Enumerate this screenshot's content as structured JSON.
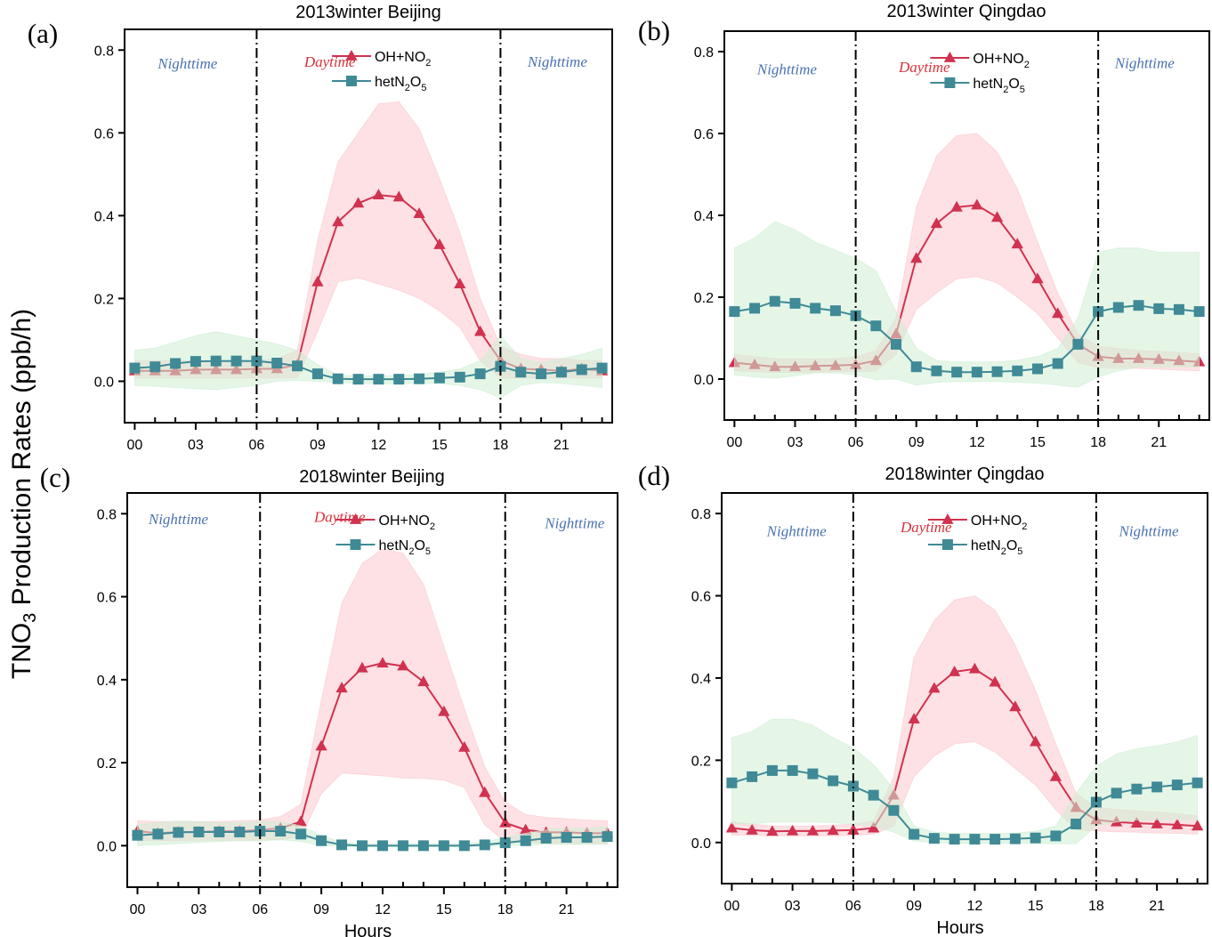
{
  "figure": {
    "ylabel_main": "TNO",
    "ylabel_sub": "3",
    "ylabel_rest": " Production Rates (ppb/h)",
    "xlabel": "Hours"
  },
  "colors": {
    "oh_line": "#d0324f",
    "oh_band": "#fbc9cd",
    "het_line": "#3f8a96",
    "het_band": "#cfeed4",
    "night_text": "#4a72b0",
    "day_text": "#d9323a"
  },
  "chart_data": [
    {
      "type": "line",
      "panel": "(a)",
      "title": "2013winter Beijing",
      "xlabel": "",
      "ylabel": "TNO3 Production Rates (ppb/h)",
      "ylim": [
        -0.1,
        0.85
      ],
      "xlim": [
        -0.5,
        23.5
      ],
      "yticks": [
        "0.0",
        "0.2",
        "0.4",
        "0.6",
        "0.8"
      ],
      "ytick_values": [
        0,
        0.2,
        0.4,
        0.6,
        0.8
      ],
      "xticks": [
        "00",
        "03",
        "06",
        "09",
        "12",
        "15",
        "18",
        "21"
      ],
      "xtick_values": [
        0,
        3,
        6,
        9,
        12,
        15,
        18,
        21
      ],
      "vlines": [
        6,
        18
      ],
      "period_labels": [
        {
          "text": "Nighttime",
          "kind": "night",
          "x": 2.6,
          "y": 0.755
        },
        {
          "text": "Daytime",
          "kind": "day",
          "x": 9.6,
          "y": 0.76
        },
        {
          "text": "Nighttime",
          "kind": "night",
          "x": 20.8,
          "y": 0.76
        }
      ],
      "legend": {
        "position": "top-center",
        "entries": [
          {
            "label": "OH+NO",
            "sub": "2",
            "after": "",
            "series": "OH+NO2"
          },
          {
            "label": "hetN",
            "sub": "2",
            "after": "O",
            "sub2": "5",
            "series": "hetN2O5"
          }
        ]
      },
      "x": [
        0,
        1,
        2,
        3,
        4,
        5,
        6,
        7,
        8,
        9,
        10,
        11,
        12,
        13,
        14,
        15,
        16,
        17,
        18,
        19,
        20,
        21,
        22,
        23
      ],
      "series": [
        {
          "name": "OH+NO2",
          "marker": "triangle",
          "values": [
            0.025,
            0.025,
            0.025,
            0.028,
            0.028,
            0.028,
            0.03,
            0.03,
            0.04,
            0.24,
            0.385,
            0.43,
            0.45,
            0.445,
            0.405,
            0.33,
            0.235,
            0.12,
            0.05,
            0.03,
            0.028,
            0.025,
            0.03,
            0.025
          ],
          "lower": [
            0.008,
            0.008,
            0.008,
            0.008,
            0.008,
            0.008,
            0.008,
            0.008,
            0.008,
            0.12,
            0.24,
            0.25,
            0.235,
            0.22,
            0.2,
            0.17,
            0.13,
            0.05,
            0.008,
            0.008,
            0.008,
            0.008,
            0.008,
            0.008
          ],
          "upper": [
            0.05,
            0.05,
            0.05,
            0.05,
            0.05,
            0.05,
            0.05,
            0.055,
            0.075,
            0.34,
            0.53,
            0.6,
            0.67,
            0.675,
            0.61,
            0.49,
            0.36,
            0.2,
            0.085,
            0.065,
            0.055,
            0.055,
            0.05,
            0.05
          ]
        },
        {
          "name": "hetN2O5",
          "marker": "square",
          "values": [
            0.032,
            0.035,
            0.043,
            0.048,
            0.049,
            0.049,
            0.049,
            0.044,
            0.037,
            0.018,
            0.006,
            0.005,
            0.005,
            0.005,
            0.006,
            0.008,
            0.01,
            0.018,
            0.036,
            0.022,
            0.018,
            0.022,
            0.028,
            0.032
          ],
          "lower": [
            -0.01,
            -0.012,
            -0.015,
            -0.018,
            -0.02,
            -0.015,
            -0.01,
            0.0,
            0.002,
            0.0,
            -0.003,
            -0.005,
            -0.006,
            -0.006,
            -0.005,
            -0.005,
            -0.01,
            -0.02,
            -0.04,
            -0.01,
            -0.003,
            -0.005,
            -0.01,
            -0.015
          ],
          "upper": [
            0.075,
            0.08,
            0.095,
            0.11,
            0.12,
            0.11,
            0.1,
            0.09,
            0.075,
            0.04,
            0.015,
            0.013,
            0.013,
            0.014,
            0.017,
            0.022,
            0.03,
            0.05,
            0.11,
            0.055,
            0.045,
            0.055,
            0.065,
            0.08
          ]
        }
      ]
    },
    {
      "type": "line",
      "panel": "(b)",
      "title": "2013winter Qingdao",
      "xlabel": "",
      "ylim": [
        -0.1,
        0.85
      ],
      "xlim": [
        -0.5,
        23.5
      ],
      "yticks": [
        "0.0",
        "0.2",
        "0.4",
        "0.6",
        "0.8"
      ],
      "ytick_values": [
        0,
        0.2,
        0.4,
        0.6,
        0.8
      ],
      "xticks": [
        "00",
        "03",
        "06",
        "09",
        "12",
        "15",
        "18",
        "21"
      ],
      "xtick_values": [
        0,
        3,
        6,
        9,
        12,
        15,
        18,
        21
      ],
      "vlines": [
        6,
        18
      ],
      "period_labels": [
        {
          "text": "Nighttime",
          "kind": "night",
          "x": 2.6,
          "y": 0.745
        },
        {
          "text": "Daytime",
          "kind": "day",
          "x": 9.4,
          "y": 0.75
        },
        {
          "text": "Nighttime",
          "kind": "night",
          "x": 20.3,
          "y": 0.76
        }
      ],
      "legend": {
        "position": "top-center",
        "entries": [
          {
            "label": "OH+NO",
            "sub": "2",
            "after": "",
            "series": "OH+NO2"
          },
          {
            "label": "hetN",
            "sub": "2",
            "after": "O",
            "sub2": "5",
            "series": "hetN2O5"
          }
        ]
      },
      "x": [
        0,
        1,
        2,
        3,
        4,
        5,
        6,
        7,
        8,
        9,
        10,
        11,
        12,
        13,
        14,
        15,
        16,
        17,
        18,
        19,
        20,
        21,
        22,
        23
      ],
      "series": [
        {
          "name": "OH+NO2",
          "marker": "triangle",
          "values": [
            0.04,
            0.035,
            0.03,
            0.03,
            0.032,
            0.033,
            0.035,
            0.045,
            0.11,
            0.295,
            0.38,
            0.42,
            0.425,
            0.395,
            0.33,
            0.245,
            0.16,
            0.085,
            0.055,
            0.05,
            0.05,
            0.048,
            0.045,
            0.042
          ],
          "lower": [
            0.02,
            0.018,
            0.016,
            0.016,
            0.017,
            0.018,
            0.018,
            0.02,
            0.06,
            0.17,
            0.21,
            0.245,
            0.25,
            0.235,
            0.2,
            0.16,
            0.1,
            0.04,
            0.028,
            0.026,
            0.026,
            0.024,
            0.022,
            0.02
          ],
          "upper": [
            0.06,
            0.055,
            0.05,
            0.05,
            0.05,
            0.05,
            0.055,
            0.07,
            0.15,
            0.42,
            0.545,
            0.595,
            0.6,
            0.555,
            0.465,
            0.335,
            0.21,
            0.11,
            0.08,
            0.075,
            0.07,
            0.068,
            0.065,
            0.062
          ]
        },
        {
          "name": "hetN2O5",
          "marker": "square",
          "values": [
            0.165,
            0.173,
            0.19,
            0.185,
            0.173,
            0.167,
            0.155,
            0.13,
            0.085,
            0.03,
            0.02,
            0.017,
            0.017,
            0.018,
            0.02,
            0.025,
            0.038,
            0.085,
            0.165,
            0.175,
            0.18,
            0.172,
            0.17,
            0.165
          ],
          "lower": [
            0.01,
            0.005,
            0.002,
            0.008,
            0.015,
            0.015,
            0.01,
            -0.002,
            0.0,
            -0.015,
            -0.008,
            -0.006,
            -0.006,
            -0.006,
            -0.008,
            -0.01,
            -0.015,
            -0.02,
            0.005,
            0.02,
            0.03,
            0.03,
            0.03,
            0.03
          ],
          "upper": [
            0.32,
            0.345,
            0.385,
            0.365,
            0.335,
            0.315,
            0.295,
            0.265,
            0.165,
            0.075,
            0.045,
            0.042,
            0.042,
            0.042,
            0.046,
            0.055,
            0.075,
            0.15,
            0.31,
            0.32,
            0.32,
            0.31,
            0.31,
            0.31
          ]
        }
      ]
    },
    {
      "type": "line",
      "panel": "(c)",
      "title": "2018winter Beijing",
      "xlabel": "Hours",
      "ylim": [
        -0.1,
        0.85
      ],
      "xlim": [
        -0.5,
        23.5
      ],
      "yticks": [
        "0.0",
        "0.2",
        "0.4",
        "0.6",
        "0.8"
      ],
      "ytick_values": [
        0,
        0.2,
        0.4,
        0.6,
        0.8
      ],
      "xticks": [
        "00",
        "03",
        "06",
        "09",
        "12",
        "15",
        "18",
        "21"
      ],
      "xtick_values": [
        0,
        3,
        6,
        9,
        12,
        15,
        18,
        21
      ],
      "vlines": [
        6,
        18
      ],
      "period_labels": [
        {
          "text": "Nighttime",
          "kind": "night",
          "x": 2.0,
          "y": 0.775
        },
        {
          "text": "Daytime",
          "kind": "day",
          "x": 9.9,
          "y": 0.78
        },
        {
          "text": "Nighttime",
          "kind": "night",
          "x": 21.4,
          "y": 0.765
        }
      ],
      "legend": {
        "position": "top-center",
        "entries": [
          {
            "label": "OH+NO",
            "sub": "2",
            "after": "",
            "series": "OH+NO2"
          },
          {
            "label": "hetN",
            "sub": "2",
            "after": "O",
            "sub2": "5",
            "series": "hetN2O5"
          }
        ]
      },
      "x": [
        0,
        1,
        2,
        3,
        4,
        5,
        6,
        7,
        8,
        9,
        10,
        11,
        12,
        13,
        14,
        15,
        16,
        17,
        18,
        19,
        20,
        21,
        22,
        23
      ],
      "series": [
        {
          "name": "OH+NO2",
          "marker": "triangle",
          "values": [
            0.035,
            0.03,
            0.033,
            0.033,
            0.035,
            0.035,
            0.038,
            0.042,
            0.058,
            0.24,
            0.38,
            0.428,
            0.44,
            0.433,
            0.395,
            0.323,
            0.237,
            0.128,
            0.055,
            0.038,
            0.032,
            0.032,
            0.03,
            0.03
          ],
          "lower": [
            0.012,
            0.012,
            0.012,
            0.013,
            0.013,
            0.013,
            0.013,
            0.015,
            0.02,
            0.125,
            0.175,
            0.172,
            0.168,
            0.163,
            0.162,
            0.158,
            0.14,
            0.05,
            0.01,
            0.008,
            0.006,
            0.005,
            0.005,
            0.004
          ],
          "upper": [
            0.06,
            0.058,
            0.058,
            0.058,
            0.058,
            0.06,
            0.062,
            0.07,
            0.1,
            0.35,
            0.585,
            0.68,
            0.715,
            0.705,
            0.63,
            0.48,
            0.33,
            0.19,
            0.105,
            0.075,
            0.068,
            0.065,
            0.062,
            0.06
          ]
        },
        {
          "name": "hetN2O5",
          "marker": "square",
          "values": [
            0.025,
            0.028,
            0.032,
            0.033,
            0.033,
            0.033,
            0.035,
            0.035,
            0.028,
            0.012,
            0.002,
            0.0,
            0.0,
            0.0,
            0.0,
            0.0,
            0.0,
            0.002,
            0.007,
            0.012,
            0.018,
            0.02,
            0.02,
            0.022
          ],
          "lower": [
            0.0,
            0.002,
            0.005,
            0.008,
            0.01,
            0.012,
            0.012,
            0.014,
            0.01,
            0.0,
            -0.002,
            -0.003,
            -0.003,
            -0.003,
            -0.003,
            -0.003,
            -0.003,
            -0.002,
            0.0,
            0.002,
            0.003,
            0.003,
            0.003,
            0.003
          ],
          "upper": [
            0.05,
            0.055,
            0.06,
            0.058,
            0.055,
            0.055,
            0.058,
            0.058,
            0.048,
            0.025,
            0.008,
            0.005,
            0.005,
            0.005,
            0.005,
            0.005,
            0.005,
            0.008,
            0.02,
            0.03,
            0.038,
            0.042,
            0.042,
            0.045
          ]
        }
      ]
    },
    {
      "type": "line",
      "panel": "(d)",
      "title": "2018winter Qingdao",
      "xlabel": "Hours",
      "ylim": [
        -0.1,
        0.85
      ],
      "xlim": [
        -0.5,
        23.5
      ],
      "yticks": [
        "0.0",
        "0.2",
        "0.4",
        "0.6",
        "0.8"
      ],
      "ytick_values": [
        0,
        0.2,
        0.4,
        0.6,
        0.8
      ],
      "xticks": [
        "00",
        "03",
        "06",
        "09",
        "12",
        "15",
        "18",
        "21"
      ],
      "xtick_values": [
        0,
        3,
        6,
        9,
        12,
        15,
        18,
        21
      ],
      "vlines": [
        6,
        18
      ],
      "period_labels": [
        {
          "text": "Nighttime",
          "kind": "night",
          "x": 3.2,
          "y": 0.745
        },
        {
          "text": "Daytime",
          "kind": "day",
          "x": 9.6,
          "y": 0.755
        },
        {
          "text": "Nighttime",
          "kind": "night",
          "x": 20.6,
          "y": 0.745
        }
      ],
      "legend": {
        "position": "top-center",
        "entries": [
          {
            "label": "OH+NO",
            "sub": "2",
            "after": "",
            "series": "OH+NO2"
          },
          {
            "label": "hetN",
            "sub": "2",
            "after": "O",
            "sub2": "5",
            "series": "hetN2O5"
          }
        ]
      },
      "x": [
        0,
        1,
        2,
        3,
        4,
        5,
        6,
        7,
        8,
        9,
        10,
        11,
        12,
        13,
        14,
        15,
        16,
        17,
        18,
        19,
        20,
        21,
        22,
        23
      ],
      "series": [
        {
          "name": "OH+NO2",
          "marker": "triangle",
          "values": [
            0.035,
            0.03,
            0.027,
            0.028,
            0.028,
            0.029,
            0.03,
            0.035,
            0.115,
            0.3,
            0.375,
            0.415,
            0.422,
            0.39,
            0.33,
            0.245,
            0.16,
            0.085,
            0.055,
            0.05,
            0.047,
            0.045,
            0.043,
            0.04
          ],
          "lower": [
            0.018,
            0.017,
            0.016,
            0.016,
            0.016,
            0.016,
            0.017,
            0.02,
            0.04,
            0.16,
            0.21,
            0.24,
            0.245,
            0.22,
            0.18,
            0.14,
            0.08,
            0.03,
            0.028,
            0.026,
            0.025,
            0.023,
            0.022,
            0.02
          ],
          "upper": [
            0.05,
            0.045,
            0.04,
            0.04,
            0.04,
            0.042,
            0.045,
            0.052,
            0.16,
            0.45,
            0.54,
            0.59,
            0.6,
            0.565,
            0.48,
            0.37,
            0.24,
            0.12,
            0.085,
            0.08,
            0.077,
            0.074,
            0.07,
            0.065
          ]
        },
        {
          "name": "hetN2O5",
          "marker": "square",
          "values": [
            0.145,
            0.16,
            0.175,
            0.175,
            0.167,
            0.15,
            0.137,
            0.115,
            0.078,
            0.02,
            0.01,
            0.008,
            0.008,
            0.008,
            0.009,
            0.011,
            0.016,
            0.045,
            0.098,
            0.12,
            0.13,
            0.135,
            0.14,
            0.145
          ],
          "lower": [
            0.045,
            0.045,
            0.05,
            0.05,
            0.05,
            0.048,
            0.045,
            0.04,
            0.025,
            0.004,
            0.0,
            -0.002,
            -0.002,
            -0.002,
            -0.002,
            -0.002,
            -0.003,
            -0.003,
            0.04,
            0.05,
            0.055,
            0.055,
            0.055,
            0.055
          ],
          "upper": [
            0.255,
            0.27,
            0.3,
            0.3,
            0.285,
            0.255,
            0.23,
            0.19,
            0.13,
            0.04,
            0.025,
            0.022,
            0.022,
            0.022,
            0.023,
            0.027,
            0.04,
            0.12,
            0.185,
            0.215,
            0.228,
            0.235,
            0.245,
            0.26
          ]
        }
      ]
    }
  ]
}
